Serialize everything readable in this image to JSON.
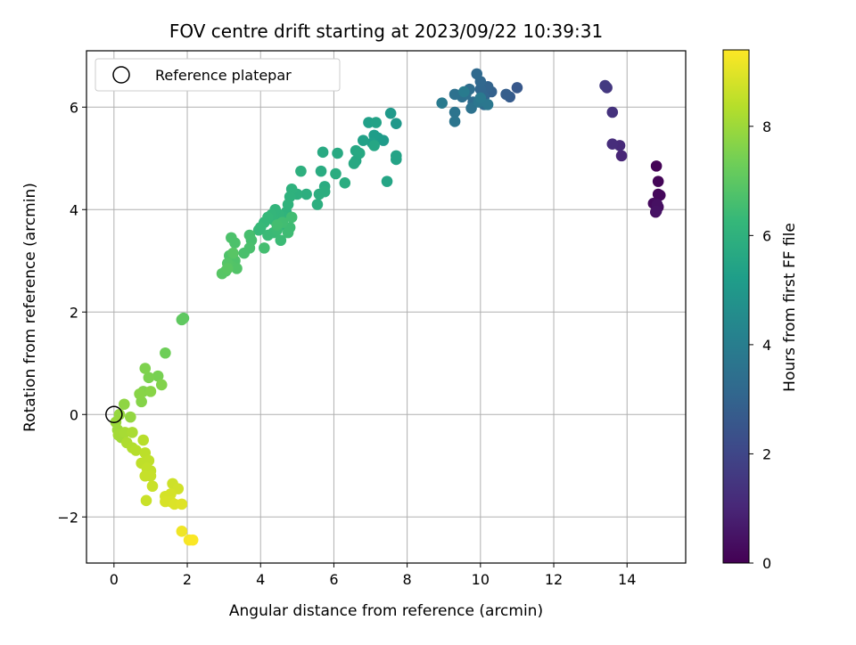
{
  "chart_data": {
    "type": "scatter",
    "title": "FOV centre drift starting at 2023/09/22 10:39:31",
    "xlabel": "Angular distance from reference (arcmin)",
    "ylabel": "Rotation from reference (arcmin)",
    "xlim": [
      -0.75,
      15.6
    ],
    "ylim": [
      -2.9,
      7.1
    ],
    "xticks": [
      0,
      2,
      4,
      6,
      8,
      10,
      12,
      14
    ],
    "yticks": [
      -2,
      0,
      2,
      4,
      6
    ],
    "xtick_labels": [
      "0",
      "2",
      "4",
      "6",
      "8",
      "10",
      "12",
      "14"
    ],
    "ytick_labels": [
      "−2",
      "0",
      "2",
      "4",
      "6"
    ],
    "grid": true,
    "legend": {
      "position": "top-left",
      "entries": [
        "Reference platepar"
      ]
    },
    "reference_point": {
      "x": 0,
      "y": 0
    },
    "colorbar": {
      "label": "Hours from first FF file",
      "colormap": "viridis",
      "range": [
        0,
        9.4
      ],
      "ticks": [
        0,
        2,
        4,
        6,
        8
      ],
      "tick_labels": [
        "0",
        "2",
        "4",
        "6",
        "8"
      ]
    },
    "series": [
      {
        "points": [
          [
            14.8,
            4.85,
            0.05
          ],
          [
            14.85,
            4.55,
            0.1
          ],
          [
            14.85,
            4.3,
            0.15
          ],
          [
            14.9,
            4.28,
            0.2
          ],
          [
            14.72,
            4.12,
            0.25
          ],
          [
            14.85,
            4.05,
            0.3
          ],
          [
            14.78,
            3.95,
            0.35
          ],
          [
            14.82,
            4.1,
            0.4
          ],
          [
            14.8,
            3.97,
            0.45
          ],
          [
            13.85,
            5.05,
            1.0
          ],
          [
            13.8,
            5.25,
            1.1
          ],
          [
            13.6,
            5.28,
            1.2
          ],
          [
            13.6,
            5.9,
            1.35
          ],
          [
            13.45,
            6.38,
            1.5
          ],
          [
            13.4,
            6.42,
            1.6
          ],
          [
            11.0,
            6.38,
            2.6
          ],
          [
            10.8,
            6.2,
            2.7
          ],
          [
            10.7,
            6.25,
            2.8
          ],
          [
            10.3,
            6.3,
            2.9
          ],
          [
            10.2,
            6.4,
            3.0
          ],
          [
            10.1,
            6.2,
            3.05
          ],
          [
            10.0,
            6.35,
            3.1
          ],
          [
            10.0,
            6.5,
            3.15
          ],
          [
            9.9,
            6.65,
            3.2
          ],
          [
            10.1,
            6.05,
            3.25
          ],
          [
            9.8,
            6.1,
            3.3
          ],
          [
            9.7,
            6.35,
            3.35
          ],
          [
            9.6,
            6.25,
            3.4
          ],
          [
            9.5,
            6.2,
            3.45
          ],
          [
            9.3,
            6.25,
            3.5
          ],
          [
            9.75,
            5.98,
            3.55
          ],
          [
            9.3,
            5.9,
            3.6
          ],
          [
            9.3,
            5.72,
            3.65
          ],
          [
            9.95,
            6.1,
            3.7
          ],
          [
            10.2,
            6.05,
            3.75
          ],
          [
            10.0,
            6.18,
            3.8
          ],
          [
            8.95,
            6.08,
            3.85
          ],
          [
            9.55,
            6.3,
            3.9
          ],
          [
            7.7,
            5.68,
            5.0
          ],
          [
            7.55,
            5.88,
            5.05
          ],
          [
            7.35,
            5.35,
            5.1
          ],
          [
            7.2,
            5.4,
            5.15
          ],
          [
            7.1,
            5.45,
            5.2
          ],
          [
            7.05,
            5.3,
            5.25
          ],
          [
            6.95,
            5.7,
            5.3
          ],
          [
            6.8,
            5.35,
            5.35
          ],
          [
            7.15,
            5.7,
            5.4
          ],
          [
            7.7,
            5.05,
            5.45
          ],
          [
            7.7,
            4.98,
            5.45
          ],
          [
            7.45,
            4.55,
            5.5
          ],
          [
            7.1,
            5.25,
            5.55
          ],
          [
            6.6,
            5.15,
            5.6
          ],
          [
            6.6,
            4.95,
            5.6
          ],
          [
            6.55,
            4.9,
            5.65
          ],
          [
            6.7,
            5.1,
            5.65
          ],
          [
            6.1,
            5.1,
            5.7
          ],
          [
            5.7,
            5.12,
            5.7
          ],
          [
            5.65,
            4.75,
            5.75
          ],
          [
            5.75,
            4.45,
            5.75
          ],
          [
            6.05,
            4.7,
            5.8
          ],
          [
            6.3,
            4.52,
            5.8
          ],
          [
            5.75,
            4.35,
            5.85
          ],
          [
            5.6,
            4.3,
            5.85
          ],
          [
            5.55,
            4.1,
            5.9
          ],
          [
            5.25,
            4.3,
            5.9
          ],
          [
            5.1,
            4.75,
            5.95
          ],
          [
            5.0,
            4.3,
            5.95
          ],
          [
            4.85,
            4.4,
            6.0
          ],
          [
            4.8,
            4.25,
            6.0
          ],
          [
            4.75,
            4.1,
            6.05
          ],
          [
            4.7,
            3.95,
            6.05
          ],
          [
            4.65,
            3.85,
            6.1
          ],
          [
            4.6,
            3.7,
            6.1
          ],
          [
            4.5,
            3.9,
            6.15
          ],
          [
            4.4,
            4.0,
            6.15
          ],
          [
            4.35,
            3.8,
            6.2
          ],
          [
            4.3,
            3.9,
            6.2
          ],
          [
            4.2,
            3.85,
            6.25
          ],
          [
            4.1,
            3.75,
            6.25
          ],
          [
            4.0,
            3.65,
            6.3
          ],
          [
            3.95,
            3.6,
            6.3
          ],
          [
            4.2,
            3.5,
            6.35
          ],
          [
            4.35,
            3.55,
            6.35
          ],
          [
            4.45,
            3.6,
            6.4
          ],
          [
            4.55,
            3.4,
            6.4
          ],
          [
            4.75,
            3.55,
            6.45
          ],
          [
            4.8,
            3.65,
            6.45
          ],
          [
            4.6,
            3.75,
            6.5
          ],
          [
            4.85,
            3.85,
            6.5
          ],
          [
            4.1,
            3.25,
            6.55
          ],
          [
            4.45,
            3.7,
            6.55
          ],
          [
            3.7,
            3.5,
            6.6
          ],
          [
            3.75,
            3.4,
            6.6
          ],
          [
            3.7,
            3.25,
            6.65
          ],
          [
            3.55,
            3.15,
            6.65
          ],
          [
            3.3,
            3.35,
            6.7
          ],
          [
            3.2,
            3.45,
            6.7
          ],
          [
            3.15,
            3.1,
            6.75
          ],
          [
            3.3,
            3.0,
            6.75
          ],
          [
            3.35,
            2.85,
            6.8
          ],
          [
            3.2,
            2.9,
            6.8
          ],
          [
            3.1,
            2.95,
            6.85
          ],
          [
            3.05,
            2.8,
            6.85
          ],
          [
            2.95,
            2.75,
            6.9
          ],
          [
            3.25,
            3.15,
            6.9
          ],
          [
            3.1,
            2.85,
            6.95
          ],
          [
            1.9,
            1.88,
            7.0
          ],
          [
            1.85,
            1.85,
            7.05
          ],
          [
            1.4,
            1.2,
            7.3
          ],
          [
            1.2,
            0.75,
            7.45
          ],
          [
            0.95,
            0.72,
            7.5
          ],
          [
            0.85,
            0.9,
            7.55
          ],
          [
            1.3,
            0.58,
            7.6
          ],
          [
            0.8,
            0.45,
            7.6
          ],
          [
            0.75,
            0.25,
            7.65
          ],
          [
            1.0,
            0.45,
            7.7
          ],
          [
            0.7,
            0.4,
            7.7
          ],
          [
            0.28,
            0.2,
            7.8
          ],
          [
            0.45,
            -0.05,
            7.85
          ],
          [
            0.15,
            0.0,
            7.9
          ],
          [
            0.05,
            -0.15,
            7.95
          ],
          [
            0.1,
            -0.3,
            8.0
          ],
          [
            0.2,
            -0.45,
            8.05
          ],
          [
            0.12,
            -0.4,
            8.1
          ],
          [
            0.3,
            -0.35,
            8.15
          ],
          [
            0.5,
            -0.35,
            8.2
          ],
          [
            0.35,
            -0.55,
            8.25
          ],
          [
            0.5,
            -0.65,
            8.3
          ],
          [
            0.6,
            -0.7,
            8.35
          ],
          [
            0.8,
            -0.5,
            8.4
          ],
          [
            0.85,
            -0.75,
            8.45
          ],
          [
            0.95,
            -0.9,
            8.5
          ],
          [
            0.75,
            -0.95,
            8.5
          ],
          [
            0.9,
            -1.05,
            8.55
          ],
          [
            1.0,
            -1.1,
            8.55
          ],
          [
            0.85,
            -1.2,
            8.6
          ],
          [
            1.0,
            -1.2,
            8.6
          ],
          [
            1.05,
            -1.4,
            8.65
          ],
          [
            0.88,
            -1.68,
            8.65
          ],
          [
            1.6,
            -1.35,
            8.7
          ],
          [
            1.75,
            -1.45,
            8.75
          ],
          [
            1.55,
            -1.55,
            8.8
          ],
          [
            1.4,
            -1.6,
            8.8
          ],
          [
            1.4,
            -1.7,
            8.85
          ],
          [
            1.55,
            -1.7,
            8.85
          ],
          [
            1.65,
            -1.75,
            8.9
          ],
          [
            1.85,
            -1.75,
            8.95
          ],
          [
            1.85,
            -2.28,
            9.2
          ],
          [
            2.05,
            -2.45,
            9.3
          ],
          [
            2.15,
            -2.45,
            9.35
          ]
        ]
      }
    ]
  }
}
